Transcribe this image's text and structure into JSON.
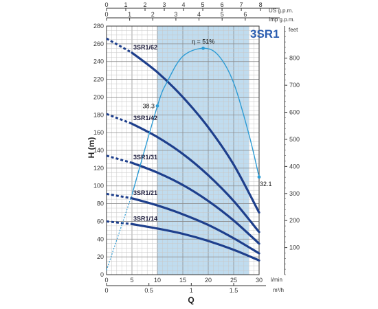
{
  "chart_data": {
    "type": "line",
    "title": "3SR1",
    "left_axis": {
      "label": "H (m)",
      "ticks": [
        0,
        20,
        40,
        60,
        80,
        100,
        120,
        140,
        160,
        180,
        200,
        220,
        240,
        260,
        280
      ],
      "range": [
        0,
        280
      ]
    },
    "right_axis": {
      "unit": "feet",
      "ticks": [
        100,
        200,
        300,
        400,
        500,
        600,
        700,
        800
      ]
    },
    "bottom_axis": {
      "unit": "l/min",
      "ticks": [
        0,
        5,
        10,
        15,
        20,
        25,
        30
      ],
      "range": [
        0,
        30
      ]
    },
    "bottom_axis2": {
      "unit": "m³/h",
      "ticks": [
        "0",
        "0.5",
        "1",
        "1.5"
      ],
      "values": [
        0,
        0.5,
        1,
        1.5
      ]
    },
    "top_axis1": {
      "unit": "US g.p.m.",
      "ticks": [
        0,
        1,
        2,
        3,
        4,
        5,
        6,
        7,
        8
      ]
    },
    "top_axis2": {
      "unit": "Imp g.p.m.",
      "ticks": [
        0,
        1,
        2,
        3,
        4,
        5,
        6
      ]
    },
    "x_title": "Q",
    "shaded_range": [
      10,
      28
    ],
    "colors": {
      "curve": "#1e3f8c",
      "efficiency": "#2c9bd4",
      "band": "#b5d6ec",
      "title": "#2a5db0"
    },
    "series": [
      {
        "name": "3SR1/62",
        "x": [
          0,
          5,
          10,
          15,
          20,
          25,
          30
        ],
        "y": [
          266,
          250,
          228,
          200,
          166,
          124,
          70
        ],
        "dashed_to": 5
      },
      {
        "name": "3SR1/42",
        "x": [
          0,
          5,
          10,
          15,
          20,
          25,
          30
        ],
        "y": [
          181,
          170,
          155,
          136,
          112,
          83,
          48
        ],
        "dashed_to": 5
      },
      {
        "name": "3SR1/31",
        "x": [
          0,
          5,
          10,
          15,
          20,
          25,
          30
        ],
        "y": [
          134,
          126,
          115,
          101,
          83,
          61,
          35
        ],
        "dashed_to": 5
      },
      {
        "name": "3SR1/21",
        "x": [
          0,
          5,
          10,
          15,
          20,
          25,
          30
        ],
        "y": [
          91,
          86,
          78,
          68,
          56,
          41,
          24
        ],
        "dashed_to": 5
      },
      {
        "name": "3SR1/14",
        "x": [
          0,
          5,
          10,
          15,
          20,
          25,
          30
        ],
        "y": [
          60,
          57,
          52,
          46,
          38,
          28,
          16
        ],
        "dashed_to": 5
      }
    ],
    "efficiency_curve": {
      "x": [
        0,
        5,
        10,
        12,
        15,
        19,
        22,
        25,
        28,
        30
      ],
      "y": [
        5,
        90,
        190,
        218,
        246,
        255,
        247,
        216,
        158,
        110
      ],
      "dashed_to": 5,
      "points": [
        {
          "x": 10,
          "y": 190,
          "label": "38.3"
        },
        {
          "x": 19,
          "y": 255,
          "label": "η = 51%"
        },
        {
          "x": 30,
          "y": 110,
          "label": "32.1"
        }
      ]
    }
  }
}
